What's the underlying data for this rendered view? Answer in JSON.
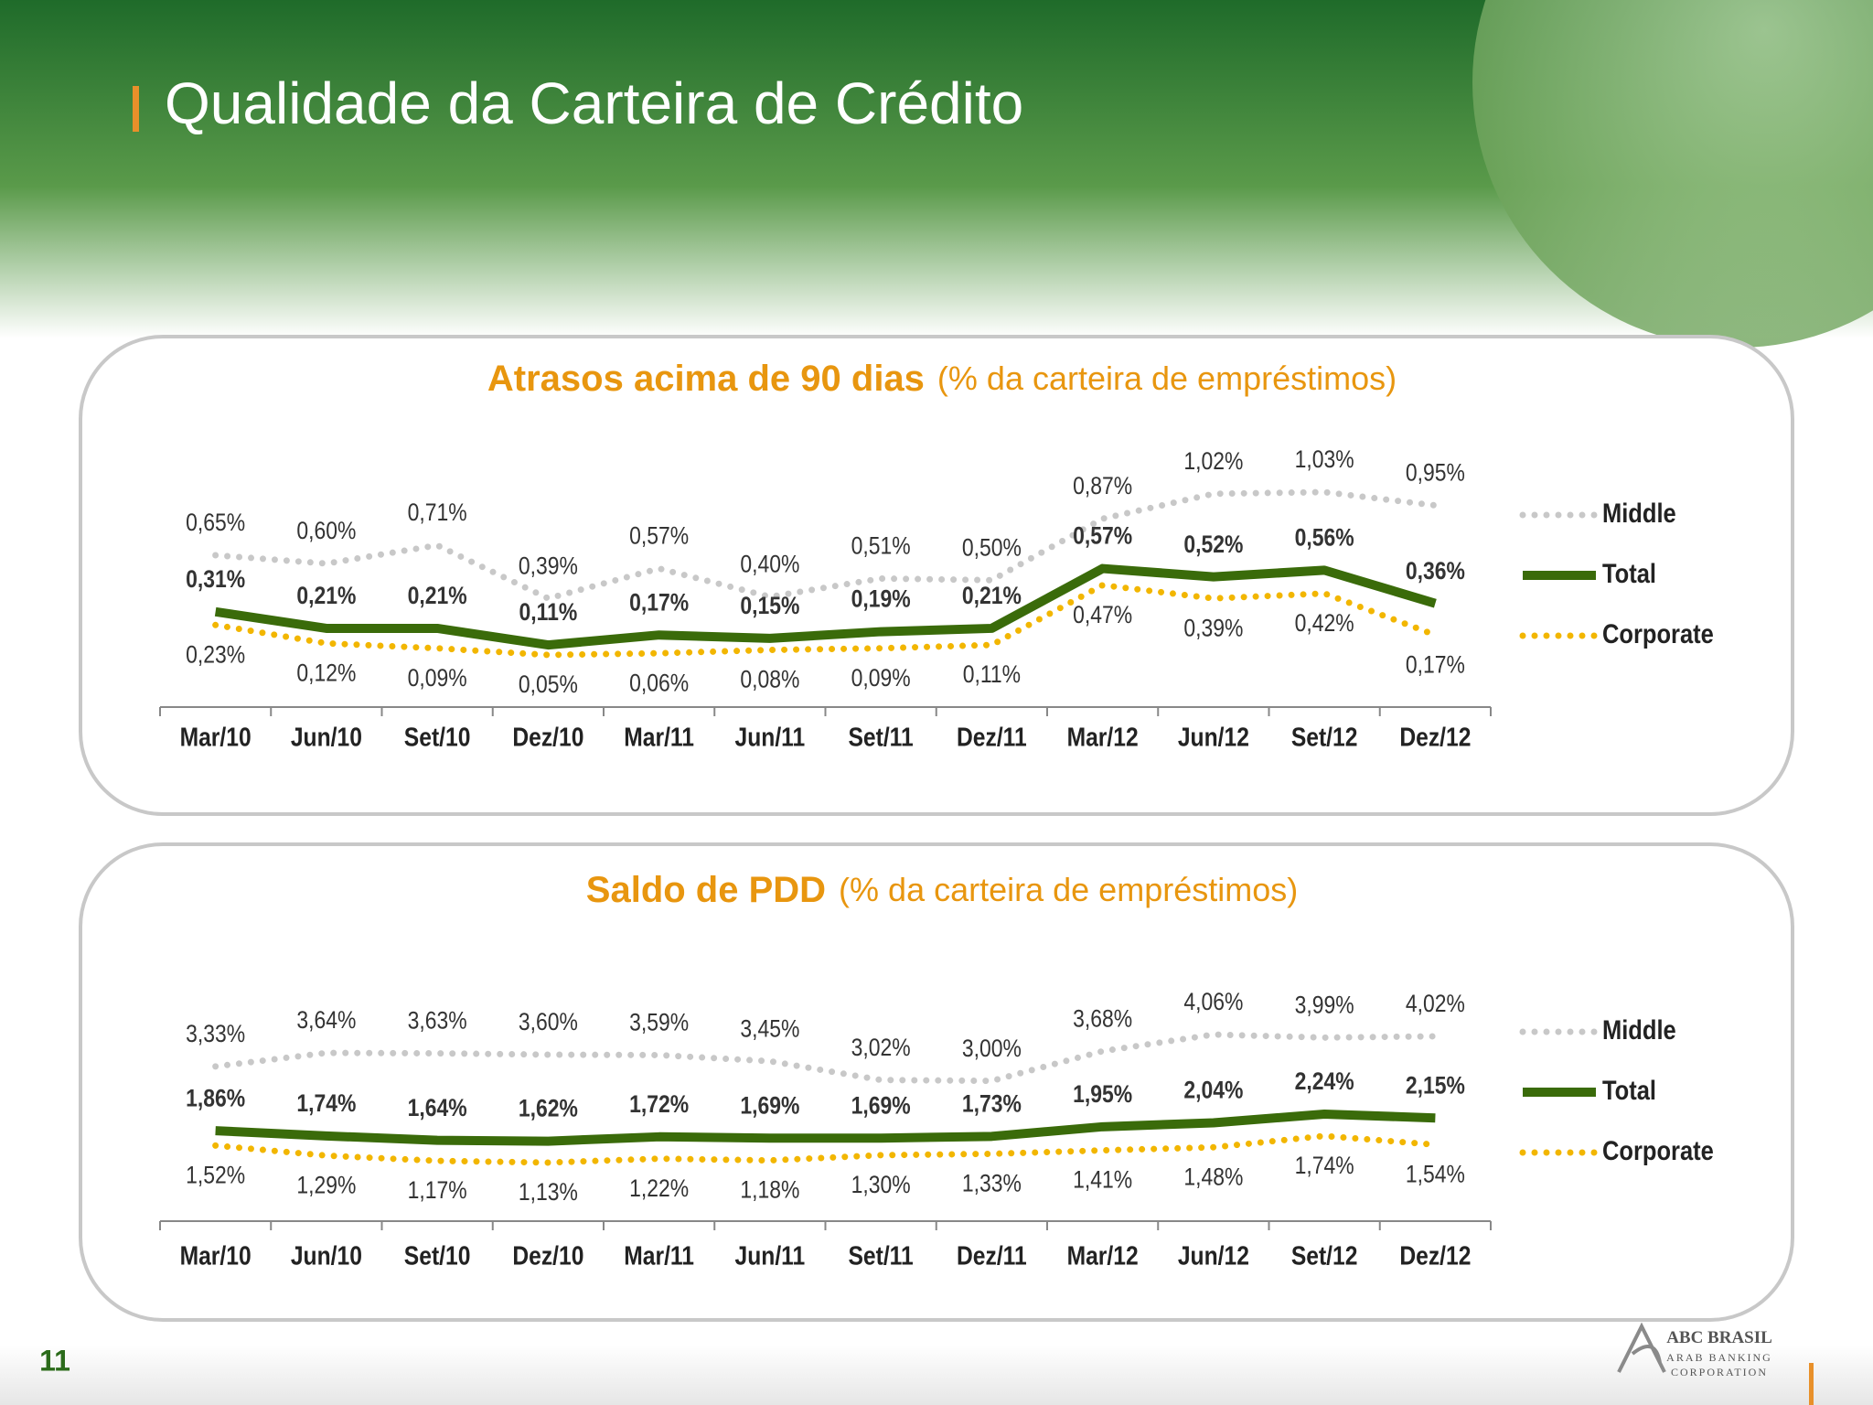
{
  "header": {
    "title": "Qualidade da Carteira de Crédito"
  },
  "page_number": "11",
  "logo": {
    "name": "ABC BRASIL",
    "line1": "ARAB BANKING",
    "line2": "CORPORATION"
  },
  "chart_data": [
    {
      "type": "line",
      "title": "Atrasos acima de 90 dias",
      "subtitle": "(% da carteira de empréstimos)",
      "categories": [
        "Mar/10",
        "Jun/10",
        "Set/10",
        "Dez/10",
        "Mar/11",
        "Jun/11",
        "Set/11",
        "Dez/11",
        "Mar/12",
        "Jun/12",
        "Set/12",
        "Dez/12"
      ],
      "series": [
        {
          "name": "Middle",
          "color": "#c8c8c8",
          "style": "dotted",
          "values": [
            0.65,
            0.6,
            0.71,
            0.39,
            0.57,
            0.4,
            0.51,
            0.5,
            0.87,
            1.02,
            1.03,
            0.95
          ],
          "value_labels": [
            "0,65%",
            "0,60%",
            "0,71%",
            "0,39%",
            "0,57%",
            "0,40%",
            "0,51%",
            "0,50%",
            "0,87%",
            "1,02%",
            "1,03%",
            "0,95%"
          ]
        },
        {
          "name": "Total",
          "color": "#3a6b0a",
          "style": "solid",
          "values": [
            0.31,
            0.21,
            0.21,
            0.11,
            0.17,
            0.15,
            0.19,
            0.21,
            0.57,
            0.52,
            0.56,
            0.36
          ],
          "value_labels": [
            "0,31%",
            "0,21%",
            "0,21%",
            "0,11%",
            "0,17%",
            "0,15%",
            "0,19%",
            "0,21%",
            "0,57%",
            "0,52%",
            "0,56%",
            "0,36%"
          ]
        },
        {
          "name": "Corporate",
          "color": "#f2b600",
          "style": "dotted",
          "values": [
            0.23,
            0.12,
            0.09,
            0.05,
            0.06,
            0.08,
            0.09,
            0.11,
            0.47,
            0.39,
            0.42,
            0.17
          ],
          "value_labels": [
            "0,23%",
            "0,12%",
            "0,09%",
            "0,05%",
            "0,06%",
            "0,08%",
            "0,09%",
            "0,11%",
            "0,47%",
            "0,39%",
            "0,42%",
            "0,17%"
          ]
        }
      ],
      "legend": "right"
    },
    {
      "type": "line",
      "title": "Saldo de PDD",
      "subtitle": "(% da carteira de empréstimos)",
      "categories": [
        "Mar/10",
        "Jun/10",
        "Set/10",
        "Dez/10",
        "Mar/11",
        "Jun/11",
        "Set/11",
        "Dez/11",
        "Mar/12",
        "Jun/12",
        "Set/12",
        "Dez/12"
      ],
      "series": [
        {
          "name": "Middle",
          "color": "#c8c8c8",
          "style": "dotted",
          "values": [
            3.33,
            3.64,
            3.63,
            3.6,
            3.59,
            3.45,
            3.02,
            3.0,
            3.68,
            4.06,
            3.99,
            4.02
          ],
          "value_labels": [
            "3,33%",
            "3,64%",
            "3,63%",
            "3,60%",
            "3,59%",
            "3,45%",
            "3,02%",
            "3,00%",
            "3,68%",
            "4,06%",
            "3,99%",
            "4,02%"
          ]
        },
        {
          "name": "Total",
          "color": "#3a6b0a",
          "style": "solid",
          "values": [
            1.86,
            1.74,
            1.64,
            1.62,
            1.72,
            1.69,
            1.69,
            1.73,
            1.95,
            2.04,
            2.24,
            2.15
          ],
          "value_labels": [
            "1,86%",
            "1,74%",
            "1,64%",
            "1,62%",
            "1,72%",
            "1,69%",
            "1,69%",
            "1,73%",
            "1,95%",
            "2,04%",
            "2,24%",
            "2,15%"
          ]
        },
        {
          "name": "Corporate",
          "color": "#f2b600",
          "style": "dotted",
          "values": [
            1.52,
            1.29,
            1.17,
            1.13,
            1.22,
            1.18,
            1.3,
            1.33,
            1.41,
            1.48,
            1.74,
            1.54
          ],
          "value_labels": [
            "1,52%",
            "1,29%",
            "1,17%",
            "1,13%",
            "1,22%",
            "1,18%",
            "1,30%",
            "1,33%",
            "1,41%",
            "1,48%",
            "1,74%",
            "1,54%"
          ]
        }
      ],
      "legend": "right"
    }
  ]
}
